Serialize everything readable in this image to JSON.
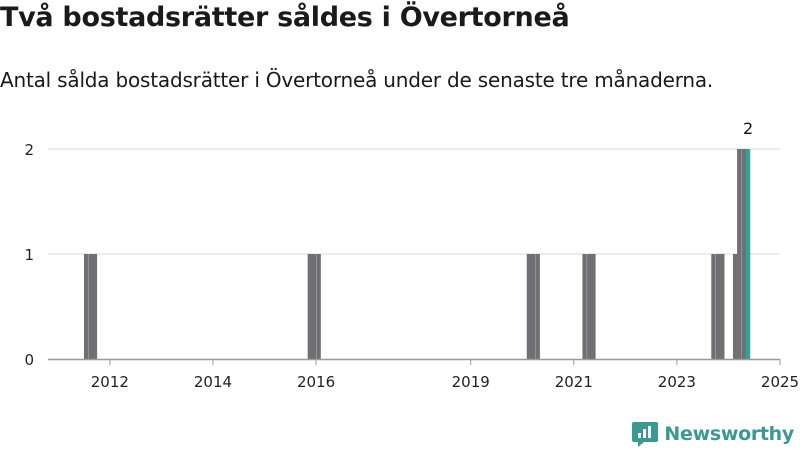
{
  "header": {
    "title": "Två bostadsrätter såldes i Övertorneå",
    "subtitle": "Antal sålda bostadsrätter i Övertorneå under de senaste tre månaderna."
  },
  "brand": {
    "name": "Newsworthy",
    "icon": "newsworthy-logo-icon",
    "color": "#3a9a93"
  },
  "chart_data": {
    "type": "bar",
    "title": "Två bostadsrätter såldes i Övertorneå",
    "subtitle": "Antal sålda bostadsrätter i Övertorneå under de senaste tre månaderna.",
    "x_unit": "year",
    "x_range": [
      2011.3,
      2025.5
    ],
    "x_ticks": [
      "2012",
      "2014",
      "2016",
      "2019",
      "2021",
      "2023",
      "2025"
    ],
    "ylim": [
      0,
      2
    ],
    "y_ticks": [
      "0",
      "1",
      "2"
    ],
    "grid": true,
    "bar_color": "#707074",
    "highlight_color": "#2ea597",
    "bars": [
      {
        "x": 2012.04,
        "value": 1
      },
      {
        "x": 2012.13,
        "value": 1
      },
      {
        "x": 2012.21,
        "value": 1
      },
      {
        "x": 2016.38,
        "value": 1
      },
      {
        "x": 2016.46,
        "value": 1
      },
      {
        "x": 2016.55,
        "value": 1
      },
      {
        "x": 2020.63,
        "value": 1
      },
      {
        "x": 2020.71,
        "value": 1
      },
      {
        "x": 2020.8,
        "value": 1
      },
      {
        "x": 2021.71,
        "value": 1
      },
      {
        "x": 2021.8,
        "value": 1
      },
      {
        "x": 2021.88,
        "value": 1
      },
      {
        "x": 2024.21,
        "value": 1
      },
      {
        "x": 2024.3,
        "value": 1
      },
      {
        "x": 2024.38,
        "value": 1
      },
      {
        "x": 2024.63,
        "value": 1
      },
      {
        "x": 2024.71,
        "value": 2
      },
      {
        "x": 2024.8,
        "value": 2
      },
      {
        "x": 2024.88,
        "value": 2,
        "highlight": true,
        "label": "2"
      }
    ]
  }
}
